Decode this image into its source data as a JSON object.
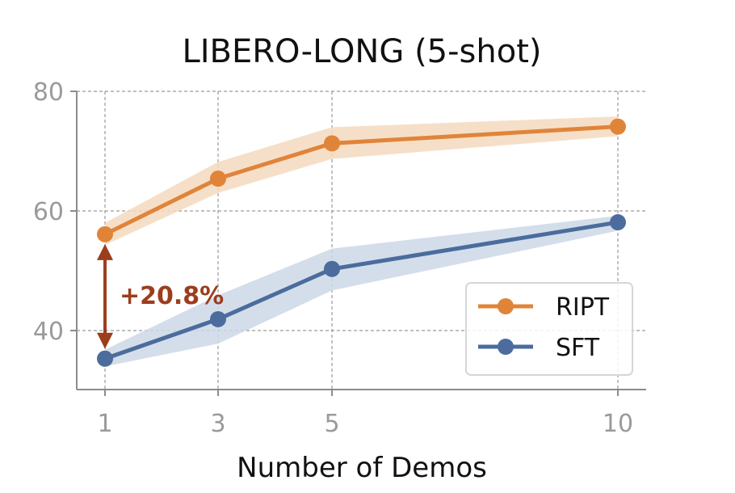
{
  "chart_data": {
    "type": "line",
    "title": "LIBERO-LONG (5-shot)",
    "xlabel": "Number of Demos",
    "ylabel": "",
    "x": [
      1,
      3,
      5,
      10
    ],
    "x_ticks": [
      "1",
      "3",
      "5",
      "10"
    ],
    "y_ticks": [
      "40",
      "60",
      "80"
    ],
    "y_tick_values": [
      40,
      60,
      80
    ],
    "ylim": [
      30,
      80
    ],
    "grid": true,
    "legend_position": "lower-right",
    "series": [
      {
        "name": "RIPT",
        "color": "#E0843A",
        "band_color": "#F5D9BE",
        "values": [
          56.1,
          65.4,
          71.3,
          74.1
        ],
        "band_low": [
          54.3,
          63.0,
          68.7,
          72.5
        ],
        "band_high": [
          58.0,
          68.2,
          74.0,
          75.8
        ]
      },
      {
        "name": "SFT",
        "color": "#4B6C9C",
        "band_color": "#CDD8E6",
        "values": [
          35.3,
          41.9,
          50.3,
          58.1
        ],
        "band_low": [
          34.0,
          37.8,
          46.7,
          56.7
        ],
        "band_high": [
          36.8,
          45.9,
          53.7,
          59.2
        ]
      }
    ],
    "annotations": [
      {
        "text": "+20.8%",
        "x": 1,
        "y_from": 35.3,
        "y_to": 56.1,
        "color": "#9C3D1C"
      }
    ]
  }
}
